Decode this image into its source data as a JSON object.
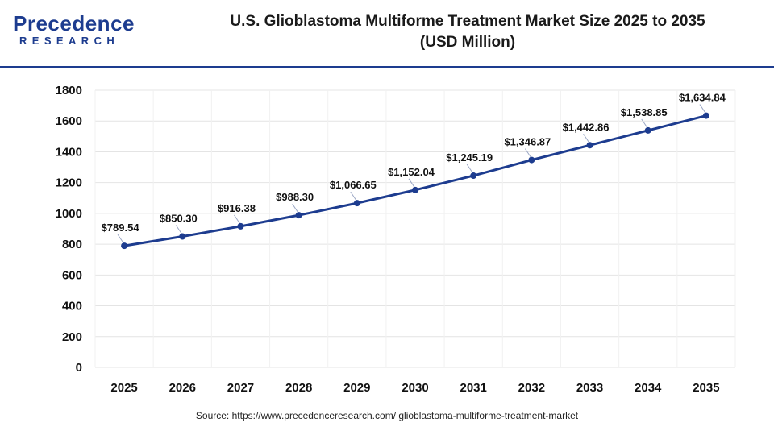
{
  "brand": {
    "name_top": "Precedence",
    "name_bottom": "RESEARCH",
    "color": "#1d3c8f"
  },
  "header": {
    "title_line1": "U.S. Glioblastoma Multiforme Treatment Market Size 2025 to 2035",
    "title_line2": "(USD Million)"
  },
  "source": "Source: https://www.precedenceresearch.com/ glioblastoma-multiforme-treatment-market",
  "chart_data": {
    "type": "line",
    "title": "U.S. Glioblastoma Multiforme Treatment Market Size 2025 to 2035 (USD Million)",
    "categories": [
      "2025",
      "2026",
      "2027",
      "2028",
      "2029",
      "2030",
      "2031",
      "2032",
      "2033",
      "2034",
      "2035"
    ],
    "values": [
      789.54,
      850.3,
      916.38,
      988.3,
      1066.65,
      1152.04,
      1245.19,
      1346.87,
      1442.86,
      1538.85,
      1634.84
    ],
    "labels": [
      "$789.54",
      "$850.30",
      "$916.38",
      "$988.30",
      "$1,066.65",
      "$1,152.04",
      "$1,245.19",
      "$1,346.87",
      "$1,442.86",
      "$1,538.85",
      "$1,634.84"
    ],
    "yticks": [
      0,
      200,
      400,
      600,
      800,
      1000,
      1200,
      1400,
      1600,
      1800
    ],
    "ylim": [
      0,
      1800
    ],
    "xlabel": "",
    "ylabel": "",
    "grid": true,
    "line_color": "#1d3c8f",
    "legend": "none"
  }
}
